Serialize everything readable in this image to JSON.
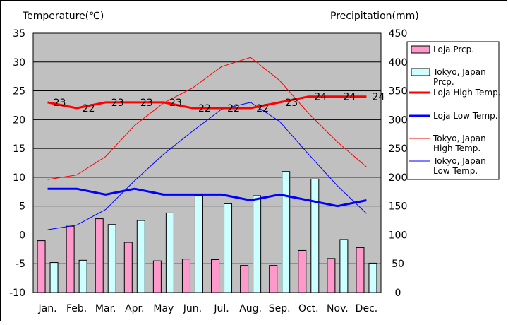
{
  "chart_data": {
    "type": "bar+line",
    "categories": [
      "Jan.",
      "Feb.",
      "Mar.",
      "Apr.",
      "May",
      "Jun.",
      "Jul.",
      "Aug.",
      "Sep.",
      "Oct.",
      "Nov.",
      "Dec."
    ],
    "left_axis": {
      "label": "Temperature(℃)",
      "min": -10,
      "max": 35,
      "step": 5,
      "ticks": [
        "35",
        "30",
        "25",
        "20",
        "15",
        "10",
        "5",
        "0",
        "-5",
        "-10"
      ]
    },
    "right_axis": {
      "label": "Precipitation(mm)",
      "min": 0,
      "max": 450,
      "step": 50,
      "ticks": [
        "450",
        "400",
        "350",
        "300",
        "250",
        "200",
        "150",
        "100",
        "50",
        "0"
      ]
    },
    "series": [
      {
        "name": "Loja Prcp.",
        "kind": "bar",
        "axis": "right",
        "color": "#ff99cc",
        "values": [
          90,
          115,
          128,
          87,
          55,
          58,
          57,
          47,
          47,
          73,
          59,
          78
        ]
      },
      {
        "name": "Tokyo, Japan Prcp.",
        "kind": "bar",
        "axis": "right",
        "color": "#ccffff",
        "values": [
          52,
          56,
          118,
          125,
          138,
          168,
          154,
          168,
          210,
          197,
          92,
          51
        ]
      },
      {
        "name": "Loja High Temp.",
        "kind": "line",
        "axis": "left",
        "color": "#ff0000",
        "width": 3,
        "values": [
          23,
          22,
          23,
          23,
          23,
          22,
          22,
          22,
          23,
          24,
          24,
          24
        ],
        "labels": [
          "23",
          "22",
          "23",
          "23",
          "23",
          "22",
          "22",
          "22",
          "23",
          "24",
          "24",
          "24"
        ]
      },
      {
        "name": "Loja Low Temp.",
        "kind": "line",
        "axis": "left",
        "color": "#0000ff",
        "width": 3,
        "values": [
          8,
          8,
          7,
          8,
          7,
          7,
          7,
          6,
          7,
          6,
          5,
          6
        ]
      },
      {
        "name": "Tokyo, Japan High Temp.",
        "kind": "line",
        "axis": "left",
        "color": "#ff0000",
        "width": 1,
        "values": [
          9.6,
          10.4,
          13.6,
          19,
          22.9,
          25.5,
          29.2,
          30.8,
          26.8,
          21.1,
          16.1,
          11.8
        ]
      },
      {
        "name": "Tokyo, Japan Low Temp.",
        "kind": "line",
        "axis": "left",
        "color": "#0000ff",
        "width": 1,
        "values": [
          0.9,
          1.7,
          4.4,
          9.4,
          14,
          18,
          21.8,
          23,
          19.7,
          14,
          8.5,
          3.7
        ]
      }
    ],
    "legend": {
      "position": "right",
      "entries": [
        {
          "lines": [
            "Loja Prcp."
          ]
        },
        {
          "lines": [
            "Tokyo, Japan",
            "Prcp."
          ]
        },
        {
          "lines": [
            "Loja High Temp."
          ]
        },
        {
          "lines": [
            "Loja Low Temp."
          ]
        },
        {
          "lines": [
            "Tokyo, Japan",
            "High Temp."
          ]
        },
        {
          "lines": [
            "Tokyo, Japan",
            "Low Temp."
          ]
        }
      ]
    },
    "grid": true,
    "plot_background": "#c0c0c0"
  }
}
